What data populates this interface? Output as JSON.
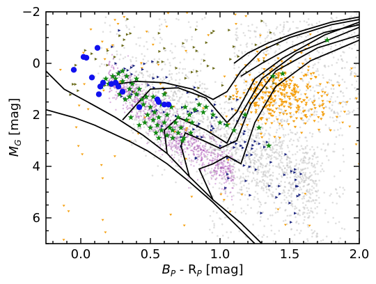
{
  "chart_data": {
    "type": "scatter",
    "title": "",
    "xlabel_main": "B",
    "xlabel_sub1": "P",
    "xlabel_mid": " - R",
    "xlabel_sub2": "P",
    "xlabel_unit": " [mag]",
    "ylabel_main": "M",
    "ylabel_sub": "G",
    "ylabel_unit": " [mag]",
    "xlim": [
      -0.25,
      2.0
    ],
    "ylim": [
      7,
      -2
    ],
    "y_inverted": true,
    "grid": false,
    "x_ticks": [
      {
        "value": 0.0,
        "label": "0.0"
      },
      {
        "value": 0.5,
        "label": "0.5"
      },
      {
        "value": 1.0,
        "label": "1.0"
      },
      {
        "value": 1.5,
        "label": "1.5"
      },
      {
        "value": 2.0,
        "label": "2.0"
      }
    ],
    "y_ticks": [
      {
        "value": -2,
        "label": "−2"
      },
      {
        "value": 0,
        "label": "0"
      },
      {
        "value": 2,
        "label": "2"
      },
      {
        "value": 4,
        "label": "4"
      },
      {
        "value": 6,
        "label": "6"
      }
    ],
    "colors": {
      "background_field": "#b8b8b8",
      "purple": "#9b2aa8",
      "green": "#138a13",
      "blue": "#1111ee",
      "orange": "#f5a010",
      "navy": "#1a237e",
      "olive": "#6b6b1a",
      "isochrone": "#000000"
    },
    "series": [
      {
        "marker": "circle",
        "color": "#1111ee",
        "points": [
          [
            -0.05,
            0.25
          ],
          [
            0.02,
            -0.25
          ],
          [
            0.04,
            -0.22
          ],
          [
            0.12,
            -0.6
          ],
          [
            0.08,
            0.55
          ],
          [
            0.16,
            0.75
          ],
          [
            0.14,
            0.9
          ],
          [
            0.13,
            1.2
          ],
          [
            0.22,
            0.8
          ],
          [
            0.25,
            0.75
          ],
          [
            0.27,
            0.9
          ],
          [
            0.3,
            1.1
          ],
          [
            0.42,
            1.7
          ],
          [
            0.56,
            1.5
          ],
          [
            0.6,
            1.6
          ],
          [
            0.63,
            1.6
          ],
          [
            0.55,
            1.4
          ]
        ]
      },
      {
        "marker": "star",
        "color": "#138a13",
        "points": [
          [
            0.15,
            0.9
          ],
          [
            0.18,
            0.6
          ],
          [
            0.2,
            0.8
          ],
          [
            0.23,
            0.5
          ],
          [
            0.25,
            0.6
          ],
          [
            0.27,
            0.4
          ],
          [
            0.3,
            0.3
          ],
          [
            0.3,
            0.7
          ],
          [
            0.33,
            0.5
          ],
          [
            0.35,
            1.0
          ],
          [
            0.37,
            0.8
          ],
          [
            0.4,
            1.2
          ],
          [
            0.42,
            1.0
          ],
          [
            0.44,
            1.4
          ],
          [
            0.45,
            1.6
          ],
          [
            0.47,
            1.3
          ],
          [
            0.48,
            2.0
          ],
          [
            0.5,
            1.7
          ],
          [
            0.52,
            2.2
          ],
          [
            0.53,
            1.9
          ],
          [
            0.55,
            2.4
          ],
          [
            0.56,
            2.1
          ],
          [
            0.58,
            2.6
          ],
          [
            0.6,
            2.3
          ],
          [
            0.62,
            2.8
          ],
          [
            0.64,
            2.5
          ],
          [
            0.66,
            2.9
          ],
          [
            0.68,
            2.3
          ],
          [
            0.7,
            2.7
          ],
          [
            0.72,
            2.5
          ],
          [
            0.74,
            2.9
          ],
          [
            0.76,
            2.2
          ],
          [
            0.78,
            2.0
          ],
          [
            0.8,
            2.3
          ],
          [
            0.82,
            1.8
          ],
          [
            0.85,
            1.6
          ],
          [
            0.88,
            1.9
          ],
          [
            0.9,
            1.7
          ],
          [
            0.4,
            0.6
          ],
          [
            0.52,
            1.3
          ],
          [
            0.58,
            1.6
          ],
          [
            0.62,
            2.0
          ],
          [
            0.65,
            1.7
          ],
          [
            0.46,
            2.3
          ],
          [
            0.5,
            2.5
          ],
          [
            0.54,
            2.7
          ],
          [
            0.36,
            2.1
          ],
          [
            0.42,
            2.4
          ],
          [
            0.7,
            2.1
          ],
          [
            0.75,
            1.7
          ],
          [
            0.95,
            2.0
          ],
          [
            1.0,
            2.3
          ],
          [
            1.05,
            2.4
          ],
          [
            1.1,
            2.6
          ],
          [
            1.28,
            2.5
          ],
          [
            1.35,
            3.2
          ],
          [
            1.18,
            2.0
          ],
          [
            1.38,
            0.5
          ],
          [
            1.45,
            0.4
          ],
          [
            1.77,
            -0.9
          ],
          [
            0.28,
            1.2
          ],
          [
            0.32,
            1.4
          ],
          [
            0.35,
            1.3
          ],
          [
            0.6,
            1.2
          ],
          [
            0.66,
            2.6
          ],
          [
            0.73,
            3.0
          ],
          [
            0.79,
            2.7
          ],
          [
            0.56,
            2.9
          ]
        ]
      }
    ]
  }
}
